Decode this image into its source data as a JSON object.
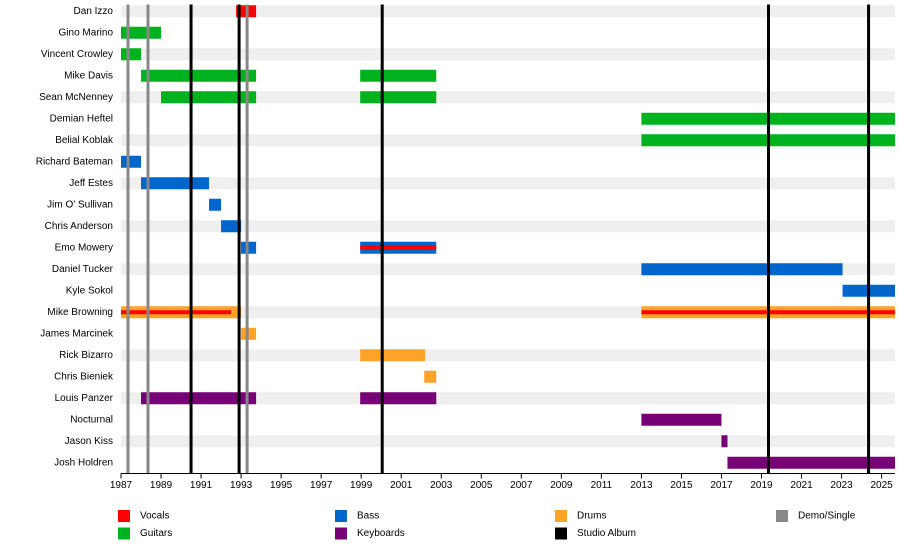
{
  "chart_data": {
    "type": "timeline",
    "categories": [
      "Dan Izzo",
      "Gino Marino",
      "Vincent Crowley",
      "Mike Davis",
      "Sean McNenney",
      "Demian Heftel",
      "Belial Koblak",
      "Richard Bateman",
      "Jeff Estes",
      "Jim O' Sullivan",
      "Chris Anderson",
      "Emo Mowery",
      "Daniel Tucker",
      "Kyle Sokol",
      "Mike Browning",
      "James Marcinek",
      "Rick Bizarro",
      "Chris Bieniek",
      "Louis Panzer",
      "Nocturnal",
      "Jason Kiss",
      "Josh Holdren"
    ],
    "series": [
      {
        "name": "Guitars",
        "color": "#00b31e",
        "spans": [
          {
            "member": "Gino Marino",
            "start": 1987,
            "end": 1989
          },
          {
            "member": "Vincent Crowley",
            "start": 1987,
            "end": 1988
          },
          {
            "member": "Mike Davis",
            "start": 1988,
            "end": 1993.75
          },
          {
            "member": "Mike Davis",
            "start": 1998.95,
            "end": 2002.75
          },
          {
            "member": "Sean McNenney",
            "start": 1989,
            "end": 1993.75
          },
          {
            "member": "Sean McNenney",
            "start": 1998.95,
            "end": 2002.75
          },
          {
            "member": "Demian Heftel",
            "start": 2013,
            "end": 2025.67
          },
          {
            "member": "Belial Koblak",
            "start": 2013,
            "end": 2025.67
          }
        ]
      },
      {
        "name": "Bass",
        "color": "#0066cc",
        "spans": [
          {
            "member": "Richard Bateman",
            "start": 1987,
            "end": 1988
          },
          {
            "member": "Jeff Estes",
            "start": 1988,
            "end": 1991.4
          },
          {
            "member": "Jim O' Sullivan",
            "start": 1991.4,
            "end": 1992
          },
          {
            "member": "Chris Anderson",
            "start": 1992,
            "end": 1993
          },
          {
            "member": "Emo Mowery",
            "start": 1993,
            "end": 1993.75
          },
          {
            "member": "Emo Mowery",
            "start": 1998.95,
            "end": 2002.75
          },
          {
            "member": "Daniel Tucker",
            "start": 2013,
            "end": 2023.05
          },
          {
            "member": "Kyle Sokol",
            "start": 2023.05,
            "end": 2025.67
          }
        ]
      },
      {
        "name": "Drums",
        "color": "#ffa329",
        "spans": [
          {
            "member": "Mike Browning",
            "start": 1987,
            "end": 1993
          },
          {
            "member": "Mike Browning",
            "start": 2013,
            "end": 2025.67
          },
          {
            "member": "James Marcinek",
            "start": 1993,
            "end": 1993.75
          },
          {
            "member": "Rick Bizarro",
            "start": 1998.95,
            "end": 2002.2
          },
          {
            "member": "Chris Bieniek",
            "start": 2002.15,
            "end": 2002.75
          }
        ]
      },
      {
        "name": "Keyboards",
        "color": "#770077",
        "spans": [
          {
            "member": "Louis Panzer",
            "start": 1988,
            "end": 1993.75
          },
          {
            "member": "Louis Panzer",
            "start": 1998.95,
            "end": 2002.75
          },
          {
            "member": "Nocturnal",
            "start": 2013,
            "end": 2017
          },
          {
            "member": "Jason Kiss",
            "start": 2017,
            "end": 2017.3
          },
          {
            "member": "Josh Holdren",
            "start": 2017.3,
            "end": 2025.67
          }
        ]
      },
      {
        "name": "Vocals",
        "color": "#ff0000",
        "spans": [
          {
            "member": "Dan Izzo",
            "start": 1992.75,
            "end": 1993.75
          },
          {
            "member": "Emo Mowery",
            "start": 1998.95,
            "end": 2002.75
          },
          {
            "member": "Mike Browning",
            "start": 1987,
            "end": 1992.5
          },
          {
            "member": "Mike Browning",
            "start": 2013,
            "end": 2025.67
          }
        ]
      }
    ],
    "lines": [
      {
        "name": "Studio Album",
        "color": "#000000",
        "x": [
          1990.5,
          1992.9,
          2000.05,
          2019.35,
          2024.35
        ]
      },
      {
        "name": "Demo/Single",
        "color": "#888888",
        "x": [
          1987.35,
          1988.35,
          1993.3
        ]
      }
    ],
    "xlim": [
      1987,
      2025.67
    ],
    "xticks": [
      1987,
      1989,
      1991,
      1993,
      1995,
      1997,
      1999,
      2001,
      2003,
      2005,
      2007,
      2009,
      2011,
      2013,
      2015,
      2017,
      2019,
      2021,
      2023,
      2025
    ]
  }
}
